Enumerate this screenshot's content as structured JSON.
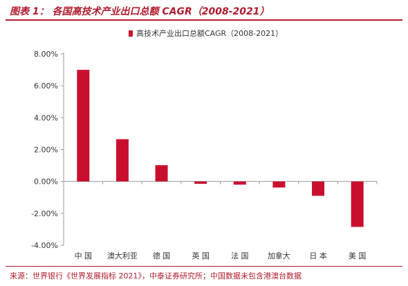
{
  "figure": {
    "title": "图表 1：   各国高技术产业出口总额 CAGR（2008-2021）",
    "source": "来源：世界银行《世界发展指标 2021》，中泰证券研究所；中国数据未包含港澳台数据"
  },
  "colors": {
    "accent": "#b01c2e",
    "bar": "#c8102e"
  },
  "chart_data": {
    "type": "bar",
    "categories": [
      "中  国",
      "澳大利亚",
      "德  国",
      "英  国",
      "法  国",
      "加拿大",
      "日  本",
      "美  国"
    ],
    "series": [
      {
        "name": "高技术产业出口总额CAGR（2008-2021）",
        "values": [
          7.0,
          2.65,
          1.02,
          -0.15,
          -0.2,
          -0.38,
          -0.9,
          -2.85
        ]
      }
    ],
    "ylim": [
      -4,
      8
    ],
    "yticks": [
      -4,
      -2,
      0,
      2,
      4,
      6,
      8
    ],
    "ytick_labels": [
      "-4.00%",
      "-2.00%",
      "0.00%",
      "2.00%",
      "4.00%",
      "6.00%",
      "8.00%"
    ],
    "legend_position": "top-center",
    "grid": false
  }
}
